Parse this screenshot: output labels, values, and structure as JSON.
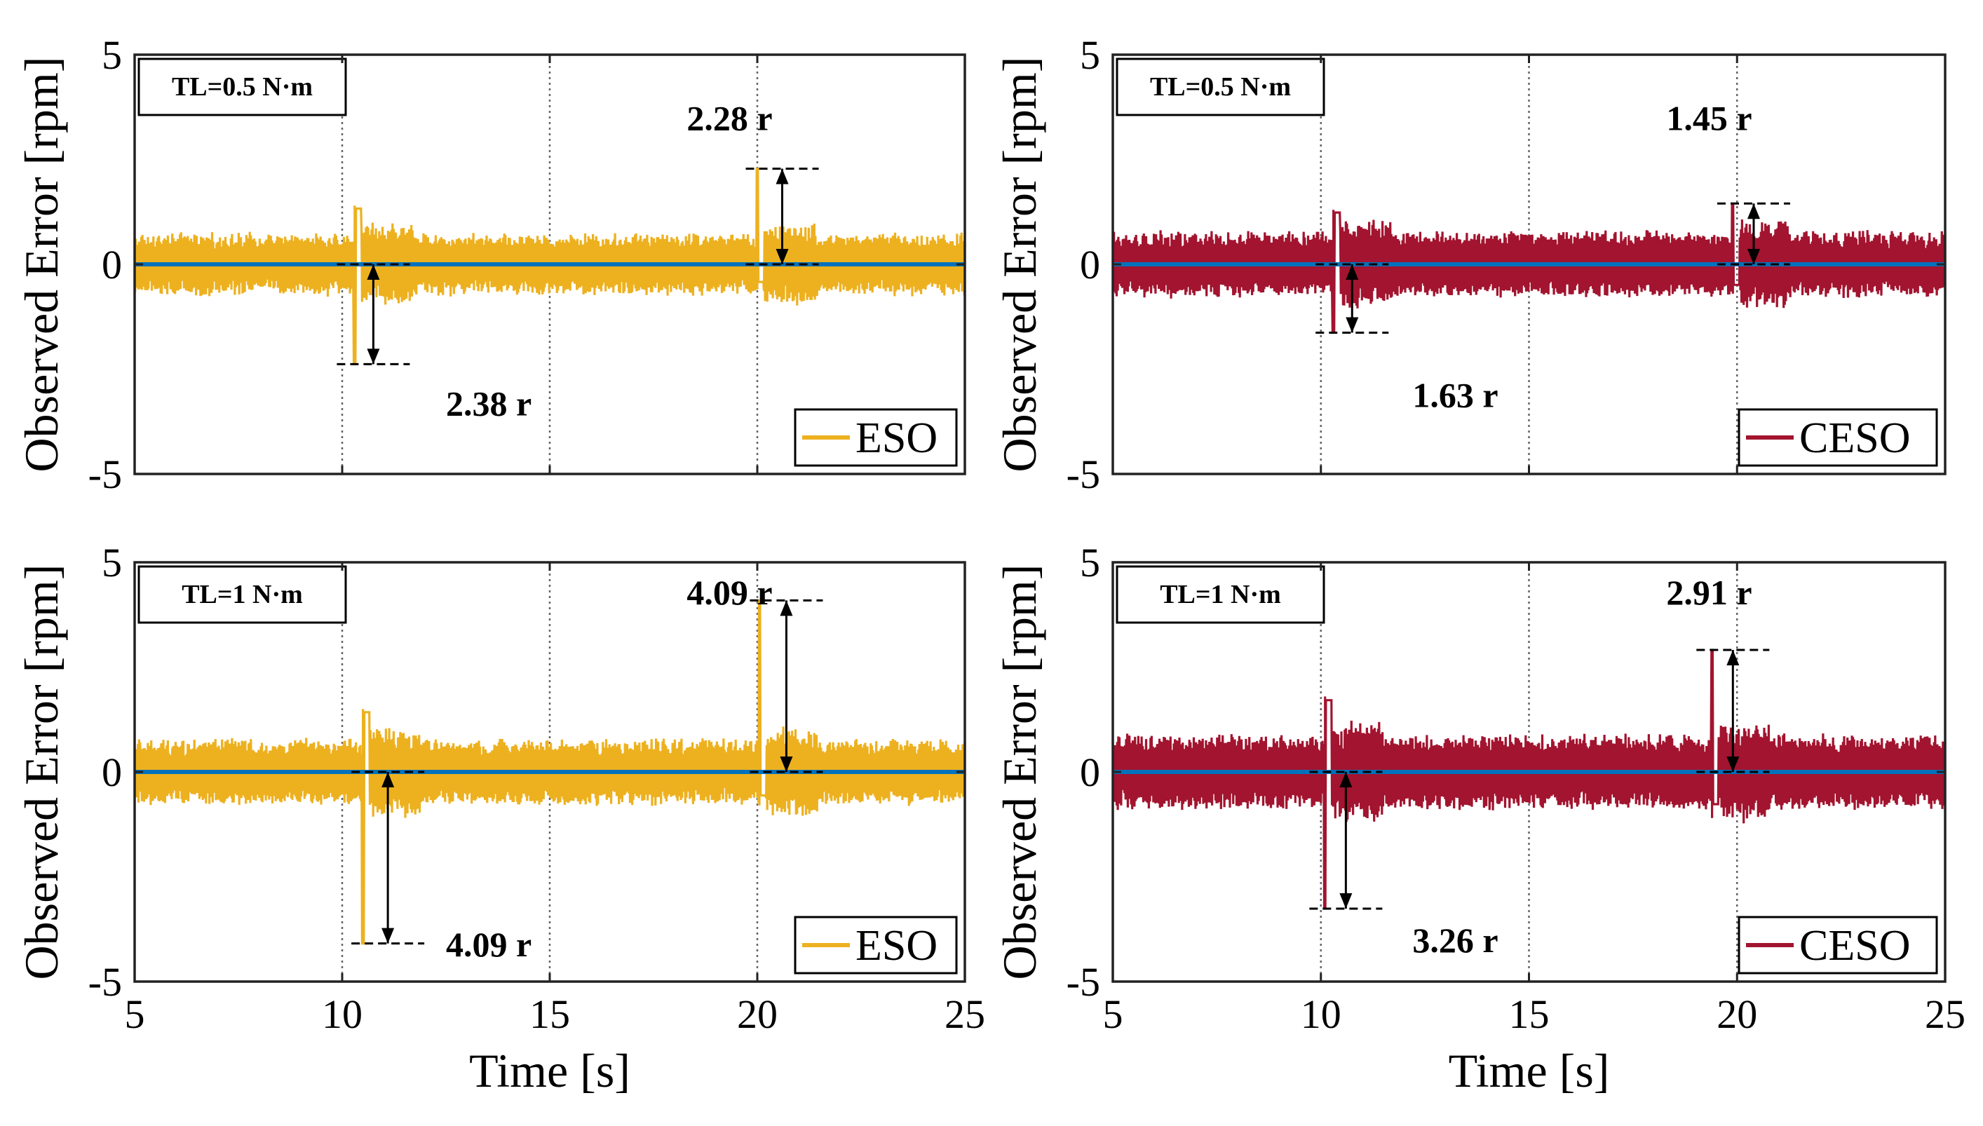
{
  "chart_data": [
    {
      "type": "line",
      "panel": "top-left",
      "tl_label": "TL=0.5 N·m",
      "legend": "ESO",
      "series_color": "#EDB120",
      "reference_color": "#0072BD",
      "xlim": [
        5,
        25
      ],
      "ylim": [
        -5,
        5
      ],
      "xticks": [
        "5",
        "10",
        "15",
        "20",
        "25"
      ],
      "yticks": [
        "5",
        "0",
        "-5"
      ],
      "ylabel": "Observed Error [rpm]",
      "xlabel": "",
      "noise_amp": 0.7,
      "events": [
        {
          "t": 10.3,
          "min": -2.38,
          "max": 1.4
        },
        {
          "t": 20.0,
          "min": -0.6,
          "max": 2.28
        }
      ],
      "annotations": [
        {
          "text": "2.28 r",
          "value": 2.28,
          "arrow_t": 20.6,
          "text_t": 18.3,
          "text_y": 3.2
        },
        {
          "text": "2.38 r",
          "value": -2.38,
          "arrow_t": 10.75,
          "text_t": 12.5,
          "text_y": -3.6
        }
      ]
    },
    {
      "type": "line",
      "panel": "top-right",
      "tl_label": "TL=0.5 N·m",
      "legend": "CESO",
      "series_color": "#A2142F",
      "reference_color": "#0072BD",
      "xlim": [
        5,
        25
      ],
      "ylim": [
        -5,
        5
      ],
      "xticks": [
        "5",
        "10",
        "15",
        "20",
        "25"
      ],
      "yticks": [
        "5",
        "0",
        "-5"
      ],
      "ylabel": "Observed Error [rpm]",
      "xlabel": "",
      "noise_amp": 0.75,
      "events": [
        {
          "t": 10.3,
          "min": -1.63,
          "max": 1.3
        },
        {
          "t": 19.9,
          "min": -0.7,
          "max": 1.45
        }
      ],
      "annotations": [
        {
          "text": "1.45 r",
          "value": 1.45,
          "arrow_t": 20.4,
          "text_t": 18.3,
          "text_y": 3.2
        },
        {
          "text": "1.63 r",
          "value": -1.63,
          "arrow_t": 10.75,
          "text_t": 12.2,
          "text_y": -3.4
        }
      ]
    },
    {
      "type": "line",
      "panel": "bottom-left",
      "tl_label": "TL=1 N·m",
      "legend": "ESO",
      "series_color": "#EDB120",
      "reference_color": "#0072BD",
      "xlim": [
        5,
        25
      ],
      "ylim": [
        -5,
        5
      ],
      "xticks": [
        "5",
        "10",
        "15",
        "20",
        "25"
      ],
      "yticks": [
        "5",
        "0",
        "-5"
      ],
      "ylabel": "Observed Error [rpm]",
      "xlabel": "Time [s]",
      "noise_amp": 0.75,
      "events": [
        {
          "t": 10.5,
          "min": -4.09,
          "max": 1.5
        },
        {
          "t": 20.05,
          "min": -0.8,
          "max": 4.09
        }
      ],
      "annotations": [
        {
          "text": "4.09 r",
          "value": 4.09,
          "arrow_t": 20.7,
          "text_t": 18.3,
          "text_y": 4.0
        },
        {
          "text": "4.09 r",
          "value": -4.09,
          "arrow_t": 11.1,
          "text_t": 12.5,
          "text_y": -4.4
        }
      ]
    },
    {
      "type": "line",
      "panel": "bottom-right",
      "tl_label": "TL=1 N·m",
      "legend": "CESO",
      "series_color": "#A2142F",
      "reference_color": "#0072BD",
      "xlim": [
        5,
        25
      ],
      "ylim": [
        -5,
        5
      ],
      "xticks": [
        "5",
        "10",
        "15",
        "20",
        "25"
      ],
      "yticks": [
        "5",
        "0",
        "-5"
      ],
      "ylabel": "Observed Error [rpm]",
      "xlabel": "Time [s]",
      "noise_amp": 0.85,
      "events": [
        {
          "t": 10.1,
          "min": -3.26,
          "max": 1.8
        },
        {
          "t": 19.4,
          "min": -1.1,
          "max": 2.91
        }
      ],
      "annotations": [
        {
          "text": "2.91 r",
          "value": 2.91,
          "arrow_t": 19.9,
          "text_t": 18.3,
          "text_y": 4.0
        },
        {
          "text": "3.26 r",
          "value": -3.26,
          "arrow_t": 10.6,
          "text_t": 12.2,
          "text_y": -4.3
        }
      ]
    }
  ]
}
